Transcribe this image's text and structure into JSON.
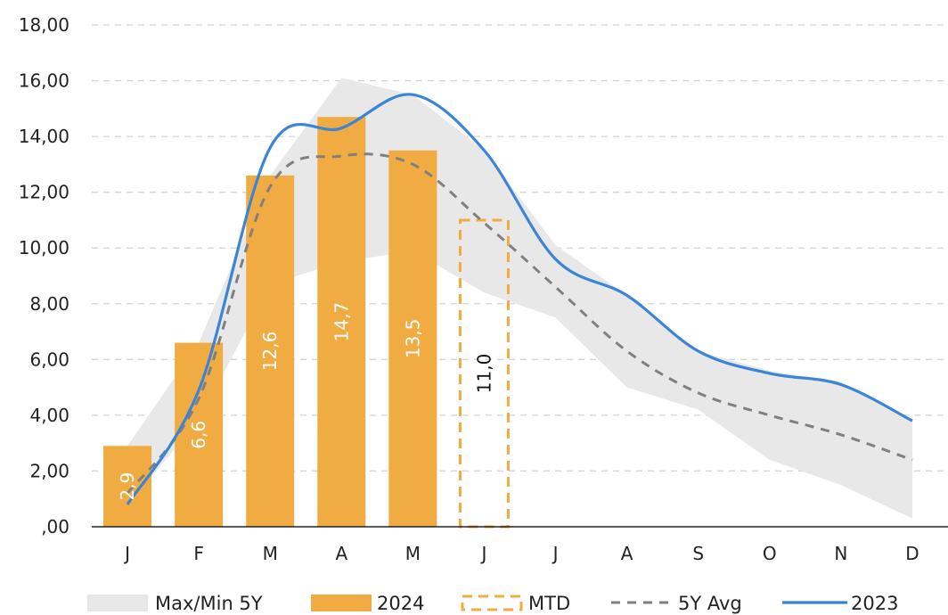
{
  "chart_data": {
    "type": "bar",
    "categories": [
      "J",
      "F",
      "M",
      "A",
      "M",
      "J",
      "J",
      "A",
      "S",
      "O",
      "N",
      "D"
    ],
    "ylim": [
      0,
      18
    ],
    "yticks": [
      0,
      2,
      4,
      6,
      8,
      10,
      12,
      14,
      16,
      18
    ],
    "ytick_labels": [
      ",00",
      "2,00",
      "4,00",
      "6,00",
      "8,00",
      "10,00",
      "12,00",
      "14,00",
      "16,00",
      "18,00"
    ],
    "grid": "horizontal dashed",
    "legend_position": "bottom",
    "colors": {
      "band": "#e8e8e8",
      "bar": "#f0ab43",
      "mtd": "#f0ab43",
      "avg": "#808080",
      "line2023": "#3c85d6"
    },
    "series": [
      {
        "name": "Max/Min 5Y",
        "kind": "band",
        "max": [
          2.9,
          6.6,
          12.6,
          16.1,
          15.5,
          13.5,
          10.1,
          8.3,
          6.3,
          5.6,
          5.2,
          3.8
        ],
        "min": [
          0.8,
          3.8,
          8.7,
          9.5,
          9.9,
          8.4,
          7.5,
          5.0,
          4.2,
          2.4,
          1.5,
          0.3
        ]
      },
      {
        "name": "2024",
        "kind": "bar",
        "values": [
          2.9,
          6.6,
          12.6,
          14.7,
          13.5,
          null,
          null,
          null,
          null,
          null,
          null,
          null
        ],
        "labels": [
          "2,9",
          "6,6",
          "12,6",
          "14,7",
          "13,5",
          "",
          "",
          "",
          "",
          "",
          "",
          ""
        ]
      },
      {
        "name": "MTD",
        "kind": "dashed-bar",
        "values": [
          null,
          null,
          null,
          null,
          null,
          11.0,
          null,
          null,
          null,
          null,
          null,
          null
        ],
        "labels": [
          "",
          "",
          "",
          "",
          "",
          "11,0",
          "",
          "",
          "",
          "",
          "",
          ""
        ]
      },
      {
        "name": "5Y Avg",
        "kind": "dashed-line",
        "values": [
          1.2,
          4.6,
          12.2,
          13.3,
          13.0,
          10.9,
          8.6,
          6.3,
          4.8,
          4.0,
          3.3,
          2.4
        ]
      },
      {
        "name": "2023",
        "kind": "line",
        "values": [
          0.8,
          4.9,
          13.6,
          14.3,
          15.5,
          13.5,
          9.6,
          8.3,
          6.3,
          5.5,
          5.1,
          3.8
        ]
      }
    ]
  }
}
